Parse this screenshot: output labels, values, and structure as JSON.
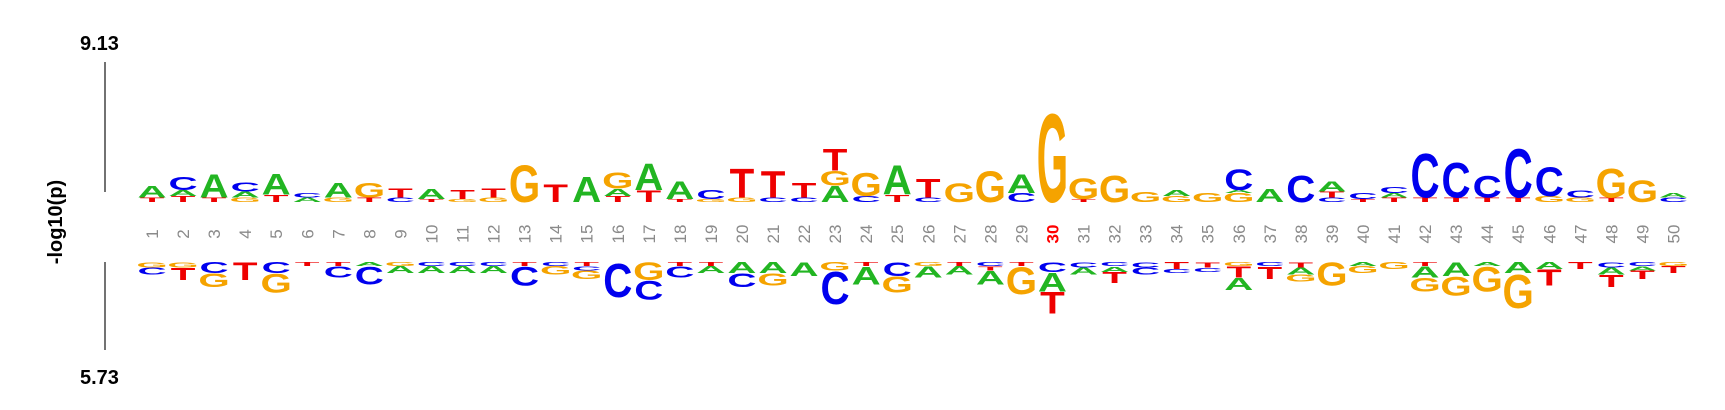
{
  "chart_data": {
    "type": "sequence-logo",
    "ylabel": "-log10(p)",
    "top_max_label": "9.13",
    "bottom_max_label": "5.73",
    "top_max": 9.13,
    "bottom_max": 5.73,
    "highlight_position": 30,
    "colors": {
      "A": "#22b522",
      "C": "#0000ee",
      "G": "#f5a300",
      "T": "#ee0000"
    },
    "positions": [
      "1",
      "2",
      "3",
      "4",
      "5",
      "6",
      "7",
      "8",
      "9",
      "10",
      "11",
      "12",
      "13",
      "14",
      "15",
      "16",
      "17",
      "18",
      "19",
      "20",
      "21",
      "22",
      "23",
      "24",
      "25",
      "26",
      "27",
      "28",
      "29",
      "30",
      "31",
      "32",
      "33",
      "34",
      "35",
      "36",
      "37",
      "38",
      "39",
      "40",
      "41",
      "42",
      "43",
      "44",
      "45",
      "46",
      "47",
      "48",
      "49",
      "50"
    ],
    "enriched": [
      [
        [
          "T",
          0.3
        ],
        [
          "A",
          0.8
        ]
      ],
      [
        [
          "T",
          0.4
        ],
        [
          "A",
          0.4
        ],
        [
          "C",
          0.9
        ]
      ],
      [
        [
          "T",
          0.3
        ],
        [
          "A",
          1.6
        ]
      ],
      [
        [
          "G",
          0.3
        ],
        [
          "A",
          0.4
        ],
        [
          "C",
          0.6
        ]
      ],
      [
        [
          "T",
          0.5
        ],
        [
          "A",
          1.4
        ]
      ],
      [
        [
          "A",
          0.3
        ],
        [
          "C",
          0.3
        ]
      ],
      [
        [
          "G",
          0.3
        ],
        [
          "A",
          1.0
        ]
      ],
      [
        [
          "T",
          0.3
        ],
        [
          "G",
          1.0
        ]
      ],
      [
        [
          "C",
          0.3
        ],
        [
          "T",
          0.6
        ]
      ],
      [
        [
          "T",
          0.2
        ],
        [
          "A",
          0.7
        ]
      ],
      [
        [
          "G",
          0.2
        ],
        [
          "T",
          0.6
        ]
      ],
      [
        [
          "G",
          0.3
        ],
        [
          "T",
          0.6
        ]
      ],
      [
        [
          "G",
          2.5
        ]
      ],
      [
        [
          "T",
          1.2
        ]
      ],
      [
        [
          "A",
          1.7
        ]
      ],
      [
        [
          "T",
          0.4
        ],
        [
          "A",
          0.5
        ],
        [
          "G",
          1.1
        ]
      ],
      [
        [
          "T",
          0.8
        ],
        [
          "A",
          1.8
        ]
      ],
      [
        [
          "T",
          0.2
        ],
        [
          "A",
          1.2
        ]
      ],
      [
        [
          "G",
          0.2
        ],
        [
          "C",
          0.6
        ]
      ],
      [
        [
          "G",
          0.3
        ],
        [
          "T",
          2.0
        ]
      ],
      [
        [
          "C",
          0.3
        ],
        [
          "T",
          1.8
        ]
      ],
      [
        [
          "C",
          0.3
        ],
        [
          "T",
          1.0
        ]
      ],
      [
        [
          "A",
          1.1
        ],
        [
          "G",
          1.0
        ],
        [
          "T",
          1.5
        ]
      ],
      [
        [
          "C",
          0.4
        ],
        [
          "G",
          1.6
        ]
      ],
      [
        [
          "T",
          0.5
        ],
        [
          "A",
          2.0
        ]
      ],
      [
        [
          "C",
          0.3
        ],
        [
          "T",
          1.3
        ]
      ],
      [
        [
          "G",
          1.3
        ]
      ],
      [
        [
          "G",
          2.1
        ]
      ],
      [
        [
          "C",
          0.6
        ],
        [
          "A",
          1.3
        ]
      ],
      [
        [
          "G",
          6.0
        ]
      ],
      [
        [
          "T",
          0.2
        ],
        [
          "G",
          1.4
        ]
      ],
      [
        [
          "G",
          1.8
        ]
      ],
      [
        [
          "G",
          0.7
        ]
      ],
      [
        [
          "G",
          0.4
        ],
        [
          "A",
          0.4
        ]
      ],
      [
        [
          "G",
          0.6
        ]
      ],
      [
        [
          "G",
          0.6
        ],
        [
          "A",
          0.2
        ],
        [
          "C",
          1.4
        ]
      ],
      [
        [
          "A",
          0.9
        ]
      ],
      [
        [
          "C",
          1.8
        ]
      ],
      [
        [
          "C",
          0.3
        ],
        [
          "T",
          0.4
        ],
        [
          "A",
          0.7
        ]
      ],
      [
        [
          "T",
          0.2
        ],
        [
          "C",
          0.4
        ]
      ],
      [
        [
          "T",
          0.3
        ],
        [
          "A",
          0.3
        ],
        [
          "C",
          0.4
        ]
      ],
      [
        [
          "T",
          0.3
        ],
        [
          "C",
          3.0
        ]
      ],
      [
        [
          "T",
          0.3
        ],
        [
          "C",
          2.4
        ]
      ],
      [
        [
          "T",
          0.3
        ],
        [
          "C",
          1.5
        ]
      ],
      [
        [
          "T",
          0.3
        ],
        [
          "C",
          3.3
        ]
      ],
      [
        [
          "G",
          0.4
        ],
        [
          "C",
          2.0
        ]
      ],
      [
        [
          "G",
          0.3
        ],
        [
          "C",
          0.5
        ]
      ],
      [
        [
          "T",
          0.3
        ],
        [
          "G",
          2.0
        ]
      ],
      [
        [
          "G",
          1.5
        ]
      ],
      [
        [
          "C",
          0.3
        ],
        [
          "A",
          0.3
        ]
      ]
    ],
    "depleted": [
      [
        [
          "G",
          0.4
        ],
        [
          "C",
          0.5
        ]
      ],
      [
        [
          "G",
          0.4
        ],
        [
          "T",
          0.9
        ]
      ],
      [
        [
          "C",
          0.8
        ],
        [
          "G",
          1.0
        ]
      ],
      [
        [
          "T",
          1.3
        ]
      ],
      [
        [
          "C",
          0.8
        ],
        [
          "G",
          1.4
        ]
      ],
      [
        [
          "T",
          0.3
        ]
      ],
      [
        [
          "T",
          0.3
        ],
        [
          "C",
          0.8
        ]
      ],
      [
        [
          "A",
          0.3
        ],
        [
          "C",
          1.3
        ]
      ],
      [
        [
          "G",
          0.3
        ],
        [
          "A",
          0.5
        ]
      ],
      [
        [
          "C",
          0.3
        ],
        [
          "A",
          0.5
        ]
      ],
      [
        [
          "C",
          0.3
        ],
        [
          "A",
          0.5
        ]
      ],
      [
        [
          "C",
          0.3
        ],
        [
          "A",
          0.5
        ]
      ],
      [
        [
          "T",
          0.3
        ],
        [
          "C",
          1.4
        ]
      ],
      [
        [
          "C",
          0.3
        ],
        [
          "G",
          0.6
        ]
      ],
      [
        [
          "T",
          0.3
        ],
        [
          "C",
          0.3
        ],
        [
          "G",
          0.6
        ]
      ],
      [
        [
          "C",
          2.5
        ]
      ],
      [
        [
          "G",
          1.3
        ],
        [
          "C",
          1.4
        ]
      ],
      [
        [
          "T",
          0.3
        ],
        [
          "C",
          0.8
        ]
      ],
      [
        [
          "T",
          0.3
        ],
        [
          "A",
          0.5
        ]
      ],
      [
        [
          "A",
          0.8
        ],
        [
          "C",
          1.0
        ]
      ],
      [
        [
          "A",
          0.8
        ],
        [
          "G",
          0.9
        ]
      ],
      [
        [
          "A",
          1.0
        ]
      ],
      [
        [
          "G",
          0.6
        ],
        [
          "C",
          2.4
        ]
      ],
      [
        [
          "T",
          0.3
        ],
        [
          "A",
          1.3
        ]
      ],
      [
        [
          "C",
          1.0
        ],
        [
          "G",
          1.2
        ]
      ],
      [
        [
          "G",
          0.3
        ],
        [
          "A",
          0.8
        ]
      ],
      [
        [
          "T",
          0.3
        ],
        [
          "A",
          0.6
        ]
      ],
      [
        [
          "C",
          0.3
        ],
        [
          "T",
          0.3
        ],
        [
          "A",
          1.0
        ]
      ],
      [
        [
          "T",
          0.3
        ],
        [
          "G",
          2.0
        ]
      ],
      [
        [
          "C",
          0.7
        ],
        [
          "A",
          1.4
        ],
        [
          "T",
          1.6
        ]
      ],
      [
        [
          "C",
          0.4
        ],
        [
          "A",
          0.5
        ]
      ],
      [
        [
          "C",
          0.3
        ],
        [
          "A",
          0.4
        ],
        [
          "T",
          0.8
        ]
      ],
      [
        [
          "C",
          0.4
        ],
        [
          "C",
          0.5
        ]
      ],
      [
        [
          "T",
          0.5
        ],
        [
          "C",
          0.3
        ]
      ],
      [
        [
          "T",
          0.4
        ],
        [
          "C",
          0.3
        ]
      ],
      [
        [
          "G",
          0.3
        ],
        [
          "T",
          0.8
        ],
        [
          "A",
          0.9
        ]
      ],
      [
        [
          "C",
          0.3
        ],
        [
          "T",
          0.9
        ]
      ],
      [
        [
          "T",
          0.4
        ],
        [
          "A",
          0.5
        ],
        [
          "G",
          0.5
        ]
      ],
      [
        [
          "G",
          1.7
        ]
      ],
      [
        [
          "A",
          0.3
        ],
        [
          "G",
          0.5
        ]
      ],
      [
        [
          "G",
          0.5
        ]
      ],
      [
        [
          "T",
          0.3
        ],
        [
          "A",
          0.8
        ],
        [
          "G",
          1.0
        ]
      ],
      [
        [
          "A",
          1.0
        ],
        [
          "G",
          1.4
        ]
      ],
      [
        [
          "A",
          0.3
        ],
        [
          "G",
          1.8
        ]
      ],
      [
        [
          "A",
          0.8
        ],
        [
          "G",
          2.5
        ]
      ],
      [
        [
          "A",
          0.5
        ],
        [
          "T",
          1.2
        ]
      ],
      [
        [
          "T",
          0.5
        ]
      ],
      [
        [
          "C",
          0.4
        ],
        [
          "A",
          0.5
        ],
        [
          "T",
          0.9
        ]
      ],
      [
        [
          "C",
          0.3
        ],
        [
          "A",
          0.3
        ],
        [
          "T",
          0.6
        ]
      ],
      [
        [
          "G",
          0.3
        ],
        [
          "T",
          0.5
        ]
      ]
    ]
  }
}
